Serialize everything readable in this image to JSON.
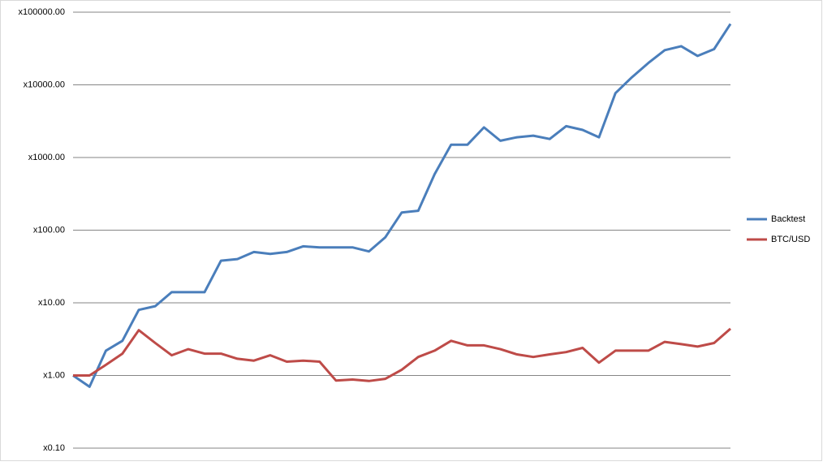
{
  "chart_data": {
    "type": "line",
    "categories": [
      null,
      null,
      null,
      null,
      null,
      null,
      null,
      null,
      null,
      null,
      null,
      null,
      null,
      null,
      null,
      null,
      null,
      null,
      null,
      null,
      null,
      null,
      null,
      null,
      null,
      null,
      null,
      null,
      null,
      null,
      null,
      null,
      null,
      null,
      null,
      null,
      null,
      null,
      null,
      null,
      null
    ],
    "series": [
      {
        "name": "Backtest",
        "color": "#4a7ebb",
        "values": [
          1,
          0.7,
          2.2,
          3,
          8,
          9,
          14,
          14,
          14,
          38,
          40,
          50,
          47,
          50,
          60,
          58,
          58,
          58,
          51,
          80,
          175,
          185,
          590,
          1500,
          1500,
          2600,
          1700,
          1900,
          2000,
          1800,
          2700,
          2400,
          1900,
          7700,
          12700,
          20000,
          30000,
          34000,
          25000,
          31000,
          69000
        ]
      },
      {
        "name": "BTC/USD",
        "color": "#be4b48",
        "values": [
          1,
          1.0,
          1.4,
          2.0,
          4.2,
          2.8,
          1.9,
          2.3,
          2.0,
          2.0,
          1.7,
          1.6,
          1.9,
          1.55,
          1.6,
          1.55,
          0.85,
          0.88,
          0.84,
          0.9,
          1.2,
          1.8,
          2.2,
          3.0,
          2.6,
          2.6,
          2.3,
          1.95,
          1.8,
          1.95,
          2.1,
          2.4,
          1.5,
          2.2,
          2.2,
          2.2,
          2.9,
          2.7,
          2.5,
          2.8,
          4.4
        ]
      }
    ],
    "ylim": [
      0.1,
      100000
    ],
    "log_scale": true,
    "grid": true,
    "legend": "right",
    "yticks": [
      {
        "value": 0.1,
        "label": "x0.10"
      },
      {
        "value": 1,
        "label": "x1.00"
      },
      {
        "value": 10,
        "label": "x10.00"
      },
      {
        "value": 100,
        "label": "x100.00"
      },
      {
        "value": 1000,
        "label": "x1000.00"
      },
      {
        "value": 10000,
        "label": "x10000.00"
      },
      {
        "value": 100000,
        "label": "x100000.00"
      }
    ]
  }
}
